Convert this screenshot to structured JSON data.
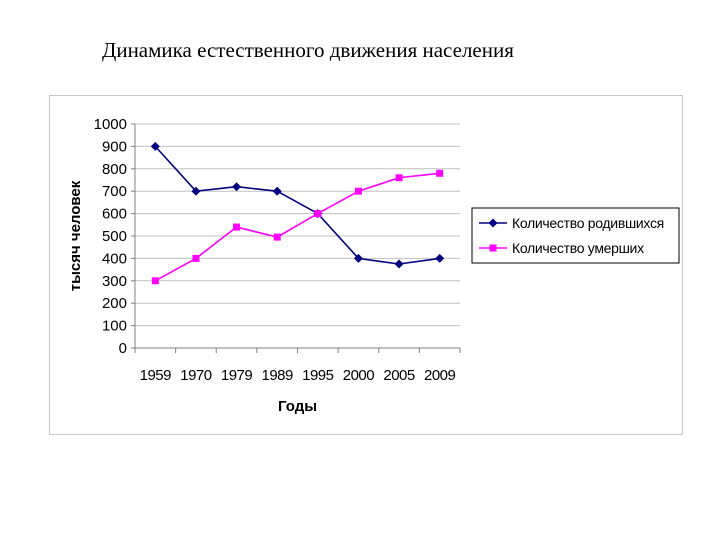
{
  "title": "Динамика естественного движения населения",
  "colors": {
    "series_births": "#000080",
    "series_deaths": "#ff00ff",
    "grid": "#c0c0c0",
    "axis": "#808080"
  },
  "chart_data": {
    "type": "line",
    "categories": [
      "1959",
      "1970",
      "1979",
      "1989",
      "1995",
      "2000",
      "2005",
      "2009"
    ],
    "series": [
      {
        "name": "Количество родившихся",
        "marker": "diamond",
        "values": [
          900,
          700,
          720,
          700,
          600,
          400,
          375,
          400
        ]
      },
      {
        "name": "Количество умерших",
        "marker": "square",
        "values": [
          300,
          400,
          540,
          495,
          600,
          700,
          760,
          780
        ]
      }
    ],
    "xlabel": "Годы",
    "ylabel": "тысяч человек",
    "ylim": [
      0,
      1000
    ],
    "yticks": [
      "0",
      "100",
      "200",
      "300",
      "400",
      "500",
      "600",
      "700",
      "800",
      "900",
      "1000"
    ],
    "grid": true,
    "legend_position": "right"
  }
}
